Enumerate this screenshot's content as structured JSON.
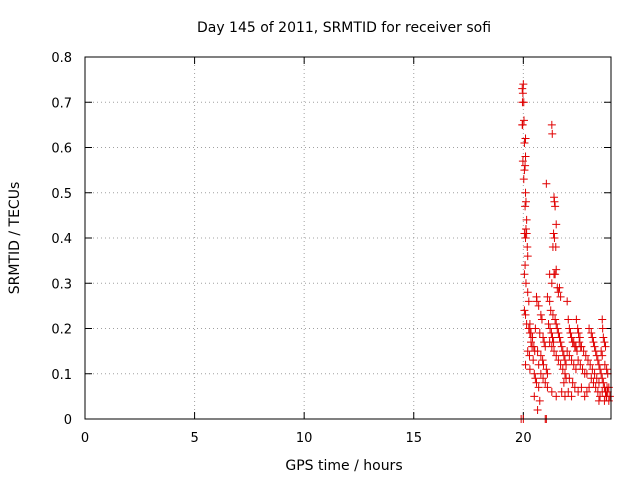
{
  "chart_data": {
    "type": "scatter",
    "title": "Day 145 of 2011, SRMTID for receiver sofi",
    "xlabel": "GPS time / hours",
    "ylabel": "SRMTID / TECUs",
    "xlim": [
      0,
      24
    ],
    "ylim": [
      0,
      0.8
    ],
    "xticks": [
      0,
      5,
      10,
      15,
      20
    ],
    "yticks": [
      0,
      0.1,
      0.2,
      0.3,
      0.4,
      0.5,
      0.6,
      0.7,
      0.8
    ],
    "xtick_labels": [
      "0",
      "5",
      "10",
      "15",
      "20"
    ],
    "ytick_labels": [
      "0",
      "0.1",
      "0.2",
      "0.3",
      "0.4",
      "0.5",
      "0.6",
      "0.7",
      "0.8"
    ],
    "grid": true,
    "marker": "+",
    "color": "#e00000",
    "series": [
      {
        "name": "SRMTID",
        "points": [
          [
            19.9,
            0.0
          ],
          [
            20.0,
            0.0
          ],
          [
            21.0,
            0.0
          ],
          [
            21.05,
            0.0
          ],
          [
            19.95,
            0.73
          ],
          [
            20.0,
            0.74
          ],
          [
            19.98,
            0.72
          ],
          [
            19.96,
            0.7
          ],
          [
            20.02,
            0.7
          ],
          [
            19.97,
            0.65
          ],
          [
            20.03,
            0.66
          ],
          [
            19.95,
            0.65
          ],
          [
            20.05,
            0.61
          ],
          [
            20.1,
            0.62
          ],
          [
            20.08,
            0.56
          ],
          [
            20.05,
            0.55
          ],
          [
            19.98,
            0.57
          ],
          [
            20.1,
            0.58
          ],
          [
            20.02,
            0.53
          ],
          [
            20.1,
            0.5
          ],
          [
            20.12,
            0.48
          ],
          [
            20.08,
            0.47
          ],
          [
            20.15,
            0.44
          ],
          [
            20.12,
            0.42
          ],
          [
            20.05,
            0.41
          ],
          [
            20.1,
            0.4
          ],
          [
            20.15,
            0.41
          ],
          [
            20.18,
            0.38
          ],
          [
            20.2,
            0.36
          ],
          [
            20.08,
            0.34
          ],
          [
            20.05,
            0.32
          ],
          [
            20.12,
            0.3
          ],
          [
            20.2,
            0.28
          ],
          [
            20.25,
            0.26
          ],
          [
            20.05,
            0.24
          ],
          [
            20.1,
            0.23
          ],
          [
            20.15,
            0.21
          ],
          [
            20.25,
            0.2
          ],
          [
            20.3,
            0.19
          ],
          [
            20.35,
            0.17
          ],
          [
            20.4,
            0.16
          ],
          [
            20.2,
            0.15
          ],
          [
            20.28,
            0.14
          ],
          [
            20.45,
            0.13
          ],
          [
            20.1,
            0.12
          ],
          [
            20.3,
            0.11
          ],
          [
            20.5,
            0.1
          ],
          [
            20.55,
            0.09
          ],
          [
            20.6,
            0.08
          ],
          [
            20.7,
            0.07
          ],
          [
            20.5,
            0.05
          ],
          [
            20.65,
            0.02
          ],
          [
            20.75,
            0.04
          ],
          [
            20.6,
            0.27
          ],
          [
            20.62,
            0.26
          ],
          [
            20.7,
            0.25
          ],
          [
            20.8,
            0.23
          ],
          [
            20.85,
            0.22
          ],
          [
            20.55,
            0.2
          ],
          [
            20.75,
            0.19
          ],
          [
            20.9,
            0.18
          ],
          [
            20.95,
            0.17
          ],
          [
            21.0,
            0.16
          ],
          [
            20.65,
            0.15
          ],
          [
            20.8,
            0.14
          ],
          [
            20.88,
            0.13
          ],
          [
            20.92,
            0.12
          ],
          [
            21.05,
            0.11
          ],
          [
            20.7,
            0.12
          ],
          [
            20.8,
            0.1
          ],
          [
            20.9,
            0.09
          ],
          [
            21.0,
            0.08
          ],
          [
            21.1,
            0.1
          ],
          [
            21.05,
            0.52
          ],
          [
            21.3,
            0.65
          ],
          [
            21.32,
            0.63
          ],
          [
            21.4,
            0.49
          ],
          [
            21.42,
            0.48
          ],
          [
            21.45,
            0.47
          ],
          [
            21.5,
            0.43
          ],
          [
            21.38,
            0.41
          ],
          [
            21.42,
            0.4
          ],
          [
            21.48,
            0.38
          ],
          [
            21.35,
            0.38
          ],
          [
            21.5,
            0.33
          ],
          [
            21.45,
            0.32
          ],
          [
            21.4,
            0.32
          ],
          [
            21.2,
            0.32
          ],
          [
            21.3,
            0.3
          ],
          [
            21.55,
            0.29
          ],
          [
            21.6,
            0.28
          ],
          [
            21.65,
            0.29
          ],
          [
            21.7,
            0.27
          ],
          [
            21.1,
            0.27
          ],
          [
            21.2,
            0.26
          ],
          [
            21.25,
            0.24
          ],
          [
            21.35,
            0.23
          ],
          [
            21.45,
            0.22
          ],
          [
            21.5,
            0.21
          ],
          [
            21.55,
            0.2
          ],
          [
            21.6,
            0.19
          ],
          [
            21.65,
            0.18
          ],
          [
            21.7,
            0.17
          ],
          [
            21.2,
            0.17
          ],
          [
            21.3,
            0.16
          ],
          [
            21.4,
            0.15
          ],
          [
            21.5,
            0.14
          ],
          [
            21.6,
            0.13
          ],
          [
            21.7,
            0.12
          ],
          [
            21.8,
            0.11
          ],
          [
            21.9,
            0.1
          ],
          [
            21.95,
            0.09
          ],
          [
            21.85,
            0.08
          ],
          [
            21.1,
            0.07
          ],
          [
            21.3,
            0.06
          ],
          [
            21.5,
            0.05
          ],
          [
            21.75,
            0.06
          ],
          [
            21.9,
            0.05
          ],
          [
            22.0,
            0.26
          ],
          [
            22.05,
            0.22
          ],
          [
            22.1,
            0.2
          ],
          [
            22.15,
            0.19
          ],
          [
            22.2,
            0.18
          ],
          [
            22.25,
            0.17
          ],
          [
            22.3,
            0.17
          ],
          [
            22.35,
            0.16
          ],
          [
            22.4,
            0.16
          ],
          [
            22.45,
            0.15
          ],
          [
            22.0,
            0.15
          ],
          [
            22.1,
            0.14
          ],
          [
            22.2,
            0.13
          ],
          [
            22.3,
            0.12
          ],
          [
            22.4,
            0.11
          ],
          [
            22.5,
            0.13
          ],
          [
            22.6,
            0.12
          ],
          [
            22.7,
            0.11
          ],
          [
            22.8,
            0.1
          ],
          [
            22.9,
            0.1
          ],
          [
            22.1,
            0.09
          ],
          [
            22.25,
            0.08
          ],
          [
            22.35,
            0.07
          ],
          [
            22.5,
            0.06
          ],
          [
            22.65,
            0.07
          ],
          [
            22.55,
            0.17
          ],
          [
            22.65,
            0.16
          ],
          [
            22.75,
            0.15
          ],
          [
            22.85,
            0.14
          ],
          [
            22.95,
            0.13
          ],
          [
            22.05,
            0.06
          ],
          [
            22.2,
            0.05
          ],
          [
            22.8,
            0.05
          ],
          [
            22.9,
            0.06
          ],
          [
            23.0,
            0.07
          ],
          [
            23.0,
            0.2
          ],
          [
            23.1,
            0.19
          ],
          [
            23.15,
            0.18
          ],
          [
            23.2,
            0.17
          ],
          [
            23.25,
            0.16
          ],
          [
            23.3,
            0.15
          ],
          [
            23.35,
            0.14
          ],
          [
            23.4,
            0.13
          ],
          [
            23.45,
            0.12
          ],
          [
            23.5,
            0.11
          ],
          [
            23.05,
            0.12
          ],
          [
            23.15,
            0.11
          ],
          [
            23.25,
            0.1
          ],
          [
            23.35,
            0.09
          ],
          [
            23.45,
            0.08
          ],
          [
            23.55,
            0.1
          ],
          [
            23.6,
            0.09
          ],
          [
            23.65,
            0.08
          ],
          [
            23.7,
            0.07
          ],
          [
            23.75,
            0.06
          ],
          [
            23.8,
            0.05
          ],
          [
            23.85,
            0.06
          ],
          [
            23.9,
            0.07
          ],
          [
            23.95,
            0.05
          ],
          [
            23.9,
            0.04
          ],
          [
            23.6,
            0.22
          ],
          [
            23.62,
            0.2
          ],
          [
            23.65,
            0.18
          ],
          [
            23.7,
            0.17
          ],
          [
            23.75,
            0.16
          ],
          [
            23.55,
            0.15
          ],
          [
            23.6,
            0.14
          ],
          [
            23.72,
            0.12
          ],
          [
            23.8,
            0.11
          ],
          [
            23.85,
            0.1
          ],
          [
            23.5,
            0.05
          ],
          [
            23.6,
            0.06
          ],
          [
            23.7,
            0.04
          ],
          [
            23.78,
            0.05
          ],
          [
            23.82,
            0.07
          ],
          [
            20.3,
            0.21
          ],
          [
            20.35,
            0.19
          ],
          [
            20.42,
            0.18
          ],
          [
            20.48,
            0.16
          ],
          [
            20.52,
            0.15
          ],
          [
            21.15,
            0.21
          ],
          [
            21.22,
            0.2
          ],
          [
            21.28,
            0.19
          ],
          [
            21.33,
            0.18
          ],
          [
            21.38,
            0.17
          ],
          [
            21.75,
            0.16
          ],
          [
            21.8,
            0.15
          ],
          [
            21.85,
            0.14
          ],
          [
            21.9,
            0.13
          ],
          [
            21.95,
            0.12
          ],
          [
            22.42,
            0.22
          ],
          [
            22.48,
            0.2
          ],
          [
            22.52,
            0.19
          ],
          [
            22.58,
            0.18
          ],
          [
            22.62,
            0.16
          ],
          [
            23.1,
            0.09
          ],
          [
            23.2,
            0.08
          ],
          [
            23.3,
            0.07
          ],
          [
            23.4,
            0.06
          ],
          [
            23.45,
            0.04
          ]
        ]
      }
    ]
  }
}
